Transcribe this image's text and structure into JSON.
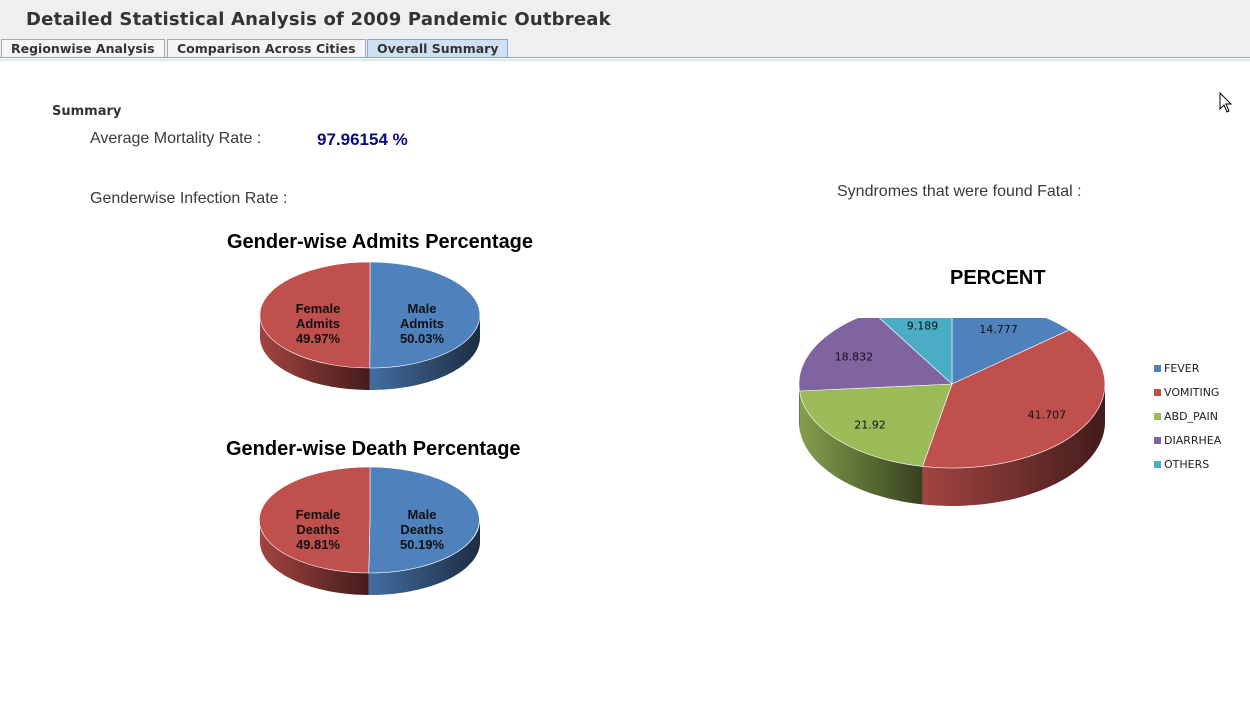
{
  "app": {
    "title": "Detailed Statistical Analysis of 2009 Pandemic Outbreak"
  },
  "tabs": [
    {
      "label": "Regionwise Analysis",
      "active": false
    },
    {
      "label": "Comparison Across Cities",
      "active": false
    },
    {
      "label": "Overall Summary",
      "active": true
    }
  ],
  "summary": {
    "title": "Summary",
    "mortality_label": "Average Mortality Rate :",
    "mortality_value": "97.96154 %",
    "gender_label": "Genderwise Infection Rate :",
    "syndromes_label": "Syndromes that were found Fatal :"
  },
  "colors": {
    "male": "#4f81bd",
    "female": "#c0504d",
    "fever": "#4f81bd",
    "vomiting": "#c0504d",
    "abd_pain": "#9bbb59",
    "diarrhea": "#8064a2",
    "others": "#4bacc6"
  },
  "chart_data": [
    {
      "type": "pie",
      "title": "Gender-wise Admits Percentage",
      "slices": [
        {
          "label": [
            "Male",
            "Admits",
            "50.03%"
          ],
          "value": 50.03,
          "color": "#4f81bd"
        },
        {
          "label": [
            "Female",
            "Admits",
            "49.97%"
          ],
          "value": 49.97,
          "color": "#c0504d"
        }
      ]
    },
    {
      "type": "pie",
      "title": "Gender-wise Death Percentage",
      "slices": [
        {
          "label": [
            "Male",
            "Deaths",
            "50.19%"
          ],
          "value": 50.19,
          "color": "#4f81bd"
        },
        {
          "label": [
            "Female",
            "Deaths",
            "49.81%"
          ],
          "value": 49.81,
          "color": "#c0504d"
        }
      ]
    },
    {
      "type": "pie",
      "title": "PERCENT",
      "legend_position": "right",
      "slices": [
        {
          "name": "FEVER",
          "label": "14.777",
          "value": 14.777,
          "color": "#4f81bd"
        },
        {
          "name": "VOMITING",
          "label": "41.707",
          "value": 41.707,
          "color": "#c0504d"
        },
        {
          "name": "ABD_PAIN",
          "label": "21.92",
          "value": 21.92,
          "color": "#9bbb59"
        },
        {
          "name": "DIARRHEA",
          "label": "18.832",
          "value": 18.832,
          "color": "#8064a2"
        },
        {
          "name": "OTHERS",
          "label": "9.189",
          "value": 9.189,
          "color": "#4bacc6"
        }
      ]
    }
  ]
}
